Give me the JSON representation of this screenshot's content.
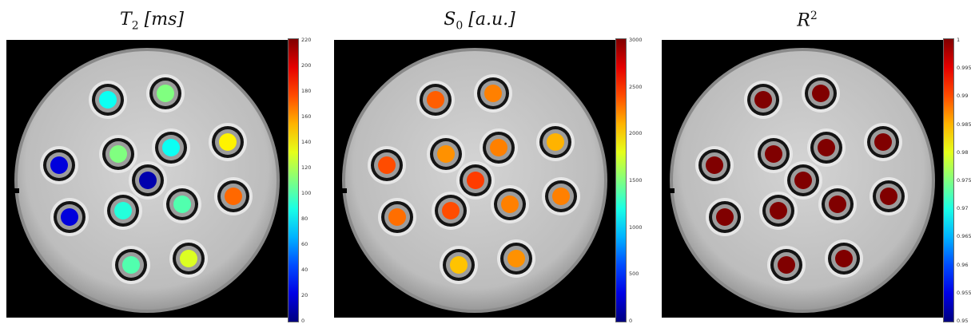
{
  "panels": [
    {
      "id": "t2",
      "title_main": "T",
      "title_sub": "2",
      "title_sup": "",
      "title_rest": " [ms]",
      "colorbar_ticks": [
        "220",
        "200",
        "180",
        "160",
        "140",
        "120",
        "100",
        "80",
        "60",
        "40",
        "20",
        "0"
      ],
      "colorbar_range": [
        0,
        220
      ],
      "vial_values": [
        85,
        110,
        110,
        85,
        140,
        20,
        10,
        170,
        20,
        90,
        100,
        100,
        130
      ]
    },
    {
      "id": "s0",
      "title_main": "S",
      "title_sub": "0",
      "title_sup": "",
      "title_rest": " [a.u.]",
      "colorbar_ticks": [
        "3000",
        "2500",
        "2000",
        "1500",
        "1000",
        "500",
        "0"
      ],
      "colorbar_range": [
        0,
        3000
      ],
      "vial_values": [
        2350,
        2250,
        2200,
        2250,
        2100,
        2400,
        2450,
        2250,
        2300,
        2400,
        2250,
        2050,
        2200
      ]
    },
    {
      "id": "r2",
      "title_main": "R",
      "title_sub": "",
      "title_sup": "2",
      "title_rest": "",
      "colorbar_ticks": [
        "1",
        "0.995",
        "0.99",
        "0.985",
        "0.98",
        "0.975",
        "0.97",
        "0.965",
        "0.96",
        "0.955",
        "0.95"
      ],
      "colorbar_range": [
        0.95,
        1
      ],
      "vial_values": [
        1,
        1,
        1,
        1,
        1,
        1,
        1,
        1,
        1,
        1,
        1,
        1,
        1
      ]
    }
  ],
  "colors": {
    "phantom_fill": "#c8c8c8",
    "background": "#000000",
    "ring": "#111111"
  }
}
